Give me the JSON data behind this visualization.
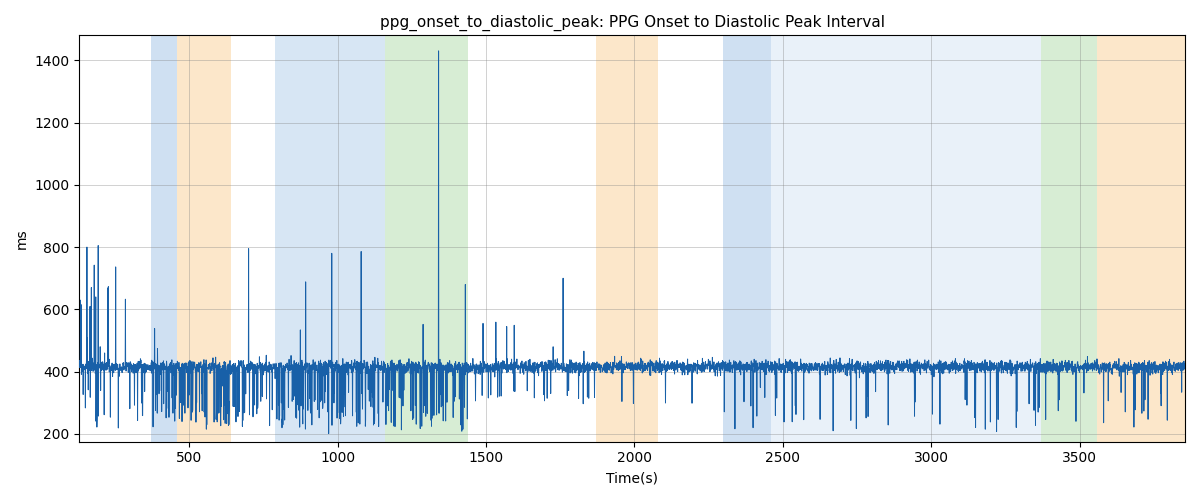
{
  "title": "ppg_onset_to_diastolic_peak: PPG Onset to Diastolic Peak Interval",
  "xlabel": "Time(s)",
  "ylabel": "ms",
  "xlim": [
    130,
    3855
  ],
  "ylim": [
    175,
    1480
  ],
  "yticks": [
    200,
    400,
    600,
    800,
    1000,
    1200,
    1400
  ],
  "xticks": [
    500,
    1000,
    1500,
    2000,
    2500,
    3000,
    3500
  ],
  "line_color": "#1860a8",
  "line_width": 0.7,
  "bands": [
    {
      "xmin": 370,
      "xmax": 460,
      "color": "#a8c8e8",
      "alpha": 0.55
    },
    {
      "xmin": 460,
      "xmax": 640,
      "color": "#fad5a0",
      "alpha": 0.55
    },
    {
      "xmin": 790,
      "xmax": 960,
      "color": "#a8c8e8",
      "alpha": 0.45
    },
    {
      "xmin": 960,
      "xmax": 1160,
      "color": "#a8c8e8",
      "alpha": 0.45
    },
    {
      "xmin": 1160,
      "xmax": 1440,
      "color": "#a8d8a0",
      "alpha": 0.45
    },
    {
      "xmin": 1870,
      "xmax": 2080,
      "color": "#fad5a0",
      "alpha": 0.55
    },
    {
      "xmin": 2300,
      "xmax": 2460,
      "color": "#a8c8e8",
      "alpha": 0.55
    },
    {
      "xmin": 2460,
      "xmax": 2760,
      "color": "#c0d8f0",
      "alpha": 0.35
    },
    {
      "xmin": 2760,
      "xmax": 3020,
      "color": "#c0d8f0",
      "alpha": 0.35
    },
    {
      "xmin": 3020,
      "xmax": 3370,
      "color": "#c0d8f0",
      "alpha": 0.35
    },
    {
      "xmin": 3370,
      "xmax": 3560,
      "color": "#a8d8a0",
      "alpha": 0.45
    },
    {
      "xmin": 3560,
      "xmax": 3855,
      "color": "#fad5a0",
      "alpha": 0.55
    }
  ],
  "seed": 99,
  "base_value": 415,
  "noise_std": 10,
  "n_points": 5000,
  "x_start": 130,
  "x_end": 3855
}
